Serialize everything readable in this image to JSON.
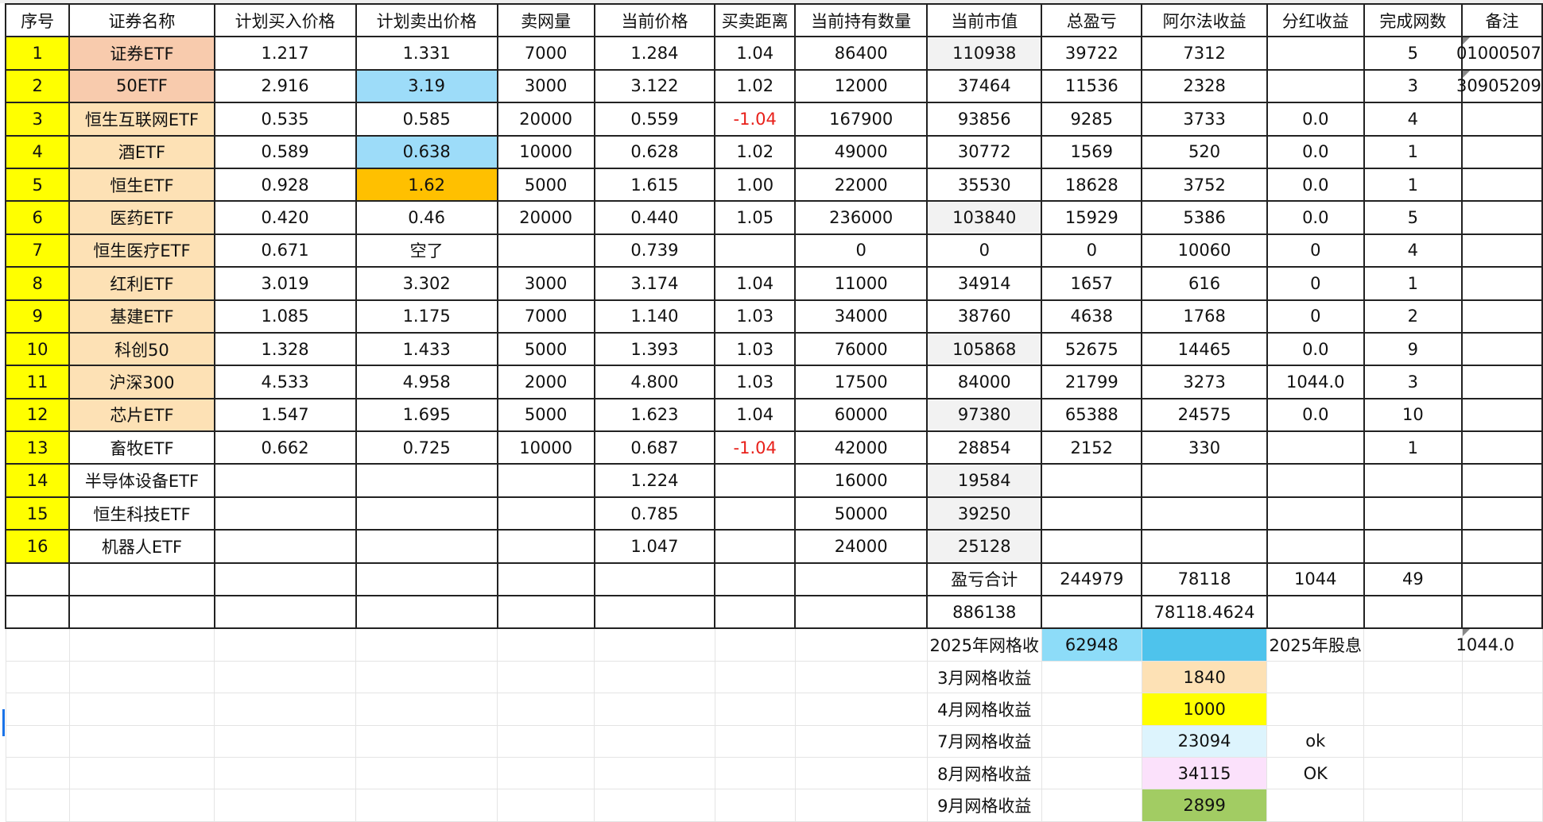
{
  "colors": {
    "seq": "#ffff00",
    "name_a": "#f8cbad",
    "name_b": "#fde1b5",
    "blue": "#9ddcf9",
    "orange": "#ffc000",
    "gray": "#f2f2f2",
    "red": "#e8201a",
    "grid_total": "#8ddcf8",
    "grid_total2": "#4ec3ec",
    "mar": "#fde1b5",
    "apr": "#ffff00",
    "jul": "#ddf4fd",
    "aug": "#fbe1fb",
    "sep": "#a2cc63"
  },
  "headers": [
    "序号",
    "证券名称",
    "计划买入价格",
    "计划卖出价格",
    "卖网量",
    "当前价格",
    "买卖距离",
    "当前持有数量",
    "当前市值",
    "总盈亏",
    "阿尔法收益",
    "分红收益",
    "完成网数",
    "备注"
  ],
  "rows": [
    [
      "1",
      "证券ETF",
      "1.217",
      "1.331",
      "7000",
      "1.284",
      "1.04",
      "86400",
      "110938",
      "39722",
      "7312",
      "",
      "5",
      "01000507"
    ],
    [
      "2",
      "50ETF",
      "2.916",
      "3.19",
      "3000",
      "3.122",
      "1.02",
      "12000",
      "37464",
      "11536",
      "2328",
      "",
      "3",
      "30905209"
    ],
    [
      "3",
      "恒生互联网ETF",
      "0.535",
      "0.585",
      "20000",
      "0.559",
      "-1.04",
      "167900",
      "93856",
      "9285",
      "3733",
      "0.0",
      "4",
      ""
    ],
    [
      "4",
      "酒ETF",
      "0.589",
      "0.638",
      "10000",
      "0.628",
      "1.02",
      "49000",
      "30772",
      "1569",
      "520",
      "0.0",
      "1",
      ""
    ],
    [
      "5",
      "恒生ETF",
      "0.928",
      "1.62",
      "5000",
      "1.615",
      "1.00",
      "22000",
      "35530",
      "18628",
      "3752",
      "0.0",
      "1",
      ""
    ],
    [
      "6",
      "医药ETF",
      "0.420",
      "0.46",
      "20000",
      "0.440",
      "1.05",
      "236000",
      "103840",
      "15929",
      "5386",
      "0.0",
      "5",
      ""
    ],
    [
      "7",
      "恒生医疗ETF",
      "0.671",
      "空了",
      "",
      "0.739",
      "",
      "0",
      "0",
      "0",
      "10060",
      "0",
      "4",
      ""
    ],
    [
      "8",
      "红利ETF",
      "3.019",
      "3.302",
      "3000",
      "3.174",
      "1.04",
      "11000",
      "34914",
      "1657",
      "616",
      "0",
      "1",
      ""
    ],
    [
      "9",
      "基建ETF",
      "1.085",
      "1.175",
      "7000",
      "1.140",
      "1.03",
      "34000",
      "38760",
      "4638",
      "1768",
      "0",
      "2",
      ""
    ],
    [
      "10",
      "科创50",
      "1.328",
      "1.433",
      "5000",
      "1.393",
      "1.03",
      "76000",
      "105868",
      "52675",
      "14465",
      "0.0",
      "9",
      ""
    ],
    [
      "11",
      "沪深300",
      "4.533",
      "4.958",
      "2000",
      "4.800",
      "1.03",
      "17500",
      "84000",
      "21799",
      "3273",
      "1044.0",
      "3",
      ""
    ],
    [
      "12",
      "芯片ETF",
      "1.547",
      "1.695",
      "5000",
      "1.623",
      "1.04",
      "60000",
      "97380",
      "65388",
      "24575",
      "0.0",
      "10",
      ""
    ],
    [
      "13",
      "畜牧ETF",
      "0.662",
      "0.725",
      "10000",
      "0.687",
      "-1.04",
      "42000",
      "28854",
      "2152",
      "330",
      "",
      "1",
      ""
    ],
    [
      "14",
      "半导体设备ETF",
      "",
      "",
      "",
      "1.224",
      "",
      "16000",
      "19584",
      "",
      "",
      "",
      "",
      ""
    ],
    [
      "15",
      "恒生科技ETF",
      "",
      "",
      "",
      "0.785",
      "",
      "50000",
      "39250",
      "",
      "",
      "",
      "",
      ""
    ],
    [
      "16",
      "机器人ETF",
      "",
      "",
      "",
      "1.047",
      "",
      "24000",
      "25128",
      "",
      "",
      "",
      "",
      ""
    ],
    [
      "",
      "",
      "",
      "",
      "",
      "",
      "",
      "",
      "盈亏合计",
      "244979",
      "78118",
      "1044",
      "49",
      ""
    ],
    [
      "",
      "",
      "",
      "",
      "",
      "",
      "",
      "",
      "886138",
      "",
      "78118.4624",
      "",
      "",
      ""
    ],
    [
      "",
      "",
      "",
      "",
      "",
      "",
      "",
      "",
      "2025年网格收",
      "62948",
      "",
      "2025年股息",
      "",
      "1044.0"
    ],
    [
      "",
      "",
      "",
      "",
      "",
      "",
      "",
      "",
      "3月网格收益",
      "",
      "1840",
      "",
      "",
      ""
    ],
    [
      "",
      "",
      "",
      "",
      "",
      "",
      "",
      "",
      "4月网格收益",
      "",
      "1000",
      "",
      "",
      ""
    ],
    [
      "",
      "",
      "",
      "",
      "",
      "",
      "",
      "",
      "7月网格收益",
      "",
      "23094",
      "ok",
      "",
      ""
    ],
    [
      "",
      "",
      "",
      "",
      "",
      "",
      "",
      "",
      "8月网格收益",
      "",
      "34115",
      "OK",
      "",
      ""
    ],
    [
      "",
      "",
      "",
      "",
      "",
      "",
      "",
      "",
      "9月网格收益",
      "",
      "2899",
      "",
      "",
      ""
    ]
  ]
}
